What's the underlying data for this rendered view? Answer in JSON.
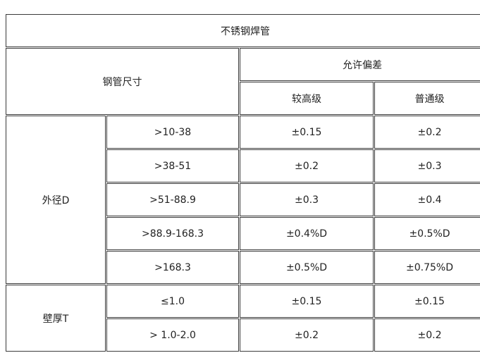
{
  "title": "不锈钢焊管",
  "header": {
    "size": "钢管尺寸",
    "tolerance": "允许偏差",
    "higher": "较高级",
    "normal": "普通级"
  },
  "groups": [
    {
      "label": "外径D",
      "rows": [
        {
          "size": ">10-38",
          "higher": "±0.15",
          "normal": "±0.2"
        },
        {
          "size": ">38-51",
          "higher": "±0.2",
          "normal": "±0.3"
        },
        {
          "size": ">51-88.9",
          "higher": "±0.3",
          "normal": "±0.4"
        },
        {
          "size": ">88.9-168.3",
          "higher": "±0.4%D",
          "normal": "±0.5%D"
        },
        {
          "size": ">168.3",
          "higher": "±0.5%D",
          "normal": "±0.75%D"
        }
      ]
    },
    {
      "label": "壁厚T",
      "rows": [
        {
          "size": "≤1.0",
          "higher": "±0.15",
          "normal": "±0.15"
        },
        {
          "size": "> 1.0-2.0",
          "higher": "±0.2",
          "normal": "±0.2"
        }
      ]
    }
  ]
}
